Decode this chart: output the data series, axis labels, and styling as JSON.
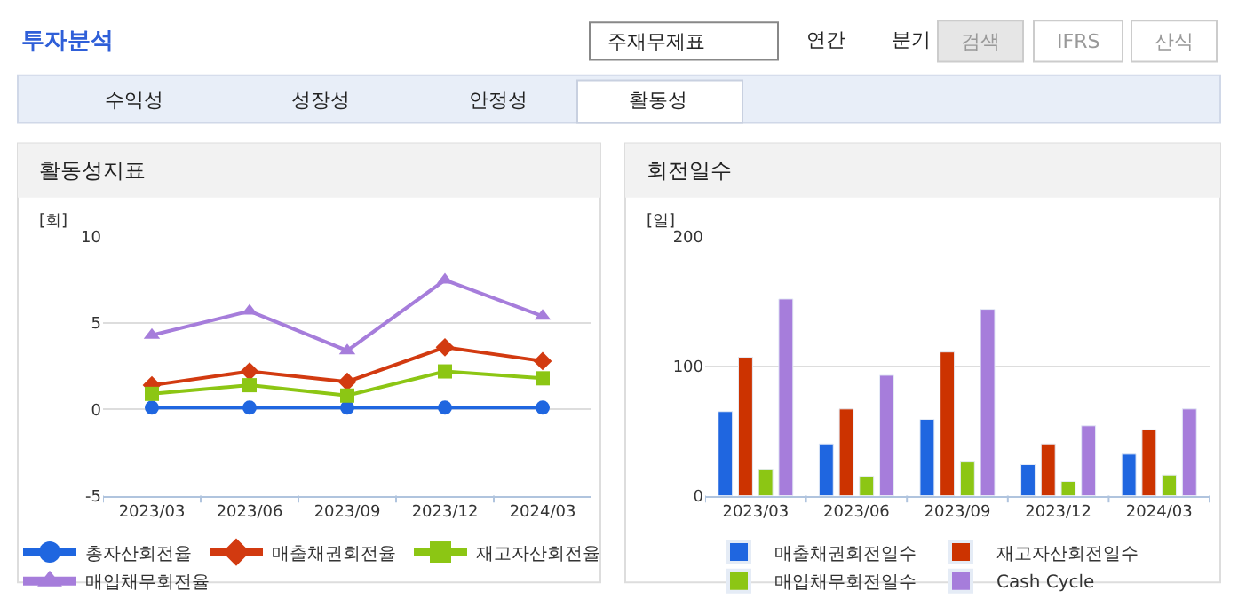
{
  "chart_data": [
    {
      "type": "other",
      "title": "투자분석",
      "annotations": [
        "주재무제표",
        "연간",
        "분기",
        "검색",
        "IFRS",
        "산식",
        "수익성",
        "성장성",
        "안정성",
        "활동성"
      ]
    },
    {
      "type": "line",
      "title": "활동성지표",
      "ylabel": "[회]",
      "categories": [
        "2023/03",
        "2023/06",
        "2023/09",
        "2023/12",
        "2024/03"
      ],
      "ylim": [
        -5,
        10
      ],
      "yticks": [
        -5,
        0,
        5,
        10
      ],
      "grid": "y",
      "legend": "bottom",
      "series": [
        {
          "name": "총자산회전율",
          "color": "#1f66e0",
          "marker": "circle",
          "values": [
            0.1,
            0.1,
            0.1,
            0.1,
            0.1
          ]
        },
        {
          "name": "매출채권회전율",
          "color": "#d23a10",
          "marker": "diamond",
          "values": [
            1.4,
            2.2,
            1.6,
            3.6,
            2.8
          ]
        },
        {
          "name": "재고자산회전율",
          "color": "#8cc614",
          "marker": "square",
          "values": [
            0.9,
            1.4,
            0.8,
            2.2,
            1.8
          ]
        },
        {
          "name": "매입채무회전율",
          "color": "#a67ddb",
          "marker": "triangle",
          "values": [
            4.3,
            5.7,
            3.4,
            7.5,
            5.4
          ]
        }
      ]
    },
    {
      "type": "bar",
      "title": "회전일수",
      "ylabel": "[일]",
      "categories": [
        "2023/03",
        "2023/06",
        "2023/09",
        "2023/12",
        "2024/03"
      ],
      "ylim": [
        0,
        200
      ],
      "yticks": [
        0,
        100,
        200
      ],
      "grid": "y",
      "legend": "bottom",
      "series": [
        {
          "name": "매출채권회전일수",
          "color": "#1f66e0",
          "values": [
            65,
            40,
            59,
            24,
            32
          ]
        },
        {
          "name": "재고자산회전일수",
          "color": "#cc3300",
          "values": [
            107,
            67,
            111,
            40,
            51
          ]
        },
        {
          "name": "매입채무회전일수",
          "color": "#8cc614",
          "values": [
            20,
            15,
            26,
            11,
            16
          ]
        },
        {
          "name": "Cash Cycle",
          "color": "#a67ddb",
          "values": [
            152,
            93,
            144,
            54,
            67
          ]
        }
      ]
    }
  ]
}
